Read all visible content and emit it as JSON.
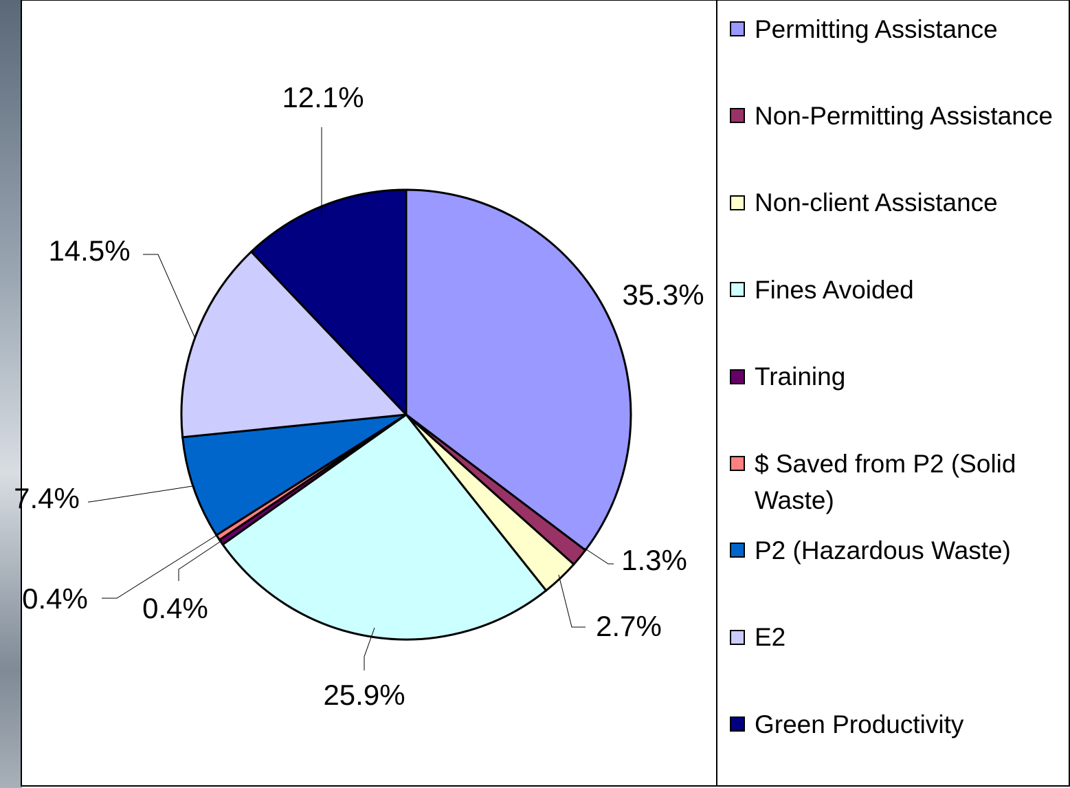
{
  "chart_data": {
    "type": "pie",
    "categories": [
      "Permitting Assistance",
      "Non-Permitting Assistance",
      "Non-client Assistance",
      "Fines Avoided",
      "Training",
      "$ Saved from P2 (Solid Waste)",
      "P2 (Hazardous Waste)",
      "E2",
      "Green Productivity"
    ],
    "values": [
      35.3,
      1.3,
      2.7,
      25.9,
      0.4,
      0.4,
      7.4,
      14.5,
      12.1
    ],
    "value_labels": [
      "35.3%",
      "1.3%",
      "2.7%",
      "25.9%",
      "0.4%",
      "0.4%",
      "7.4%",
      "14.5%",
      "12.1%"
    ],
    "colors": [
      "#9999ff",
      "#993366",
      "#ffffcc",
      "#ccffff",
      "#660066",
      "#ff8080",
      "#0066cc",
      "#ccccff",
      "#000080"
    ],
    "legend": "right"
  }
}
